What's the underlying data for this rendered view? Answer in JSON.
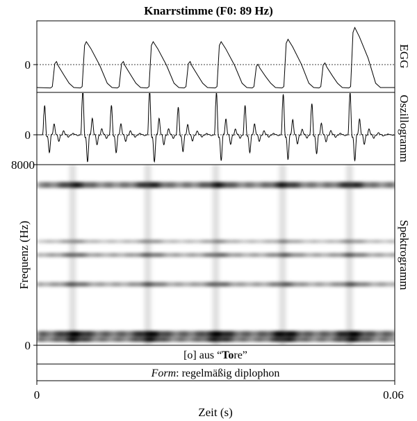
{
  "chart_data": [
    {
      "type": "line",
      "panel": "EGG",
      "title": "Knarrstimme (F0: 89 Hz)",
      "side_label": "EGG",
      "y_tick_labels": [
        "0"
      ],
      "baseline_dotted": true,
      "xlim": [
        0,
        0.06
      ],
      "cycles": [
        {
          "t_rise": 0.0026,
          "peak": 0.58,
          "kind": "minor"
        },
        {
          "t_rise": 0.0076,
          "peak": 1.0,
          "kind": "major"
        },
        {
          "t_rise": 0.0138,
          "peak": 0.58,
          "kind": "minor"
        },
        {
          "t_rise": 0.0188,
          "peak": 1.0,
          "kind": "major"
        },
        {
          "t_rise": 0.025,
          "peak": 0.58,
          "kind": "minor"
        },
        {
          "t_rise": 0.0302,
          "peak": 1.0,
          "kind": "major"
        },
        {
          "t_rise": 0.0364,
          "peak": 0.52,
          "kind": "minor"
        },
        {
          "t_rise": 0.0414,
          "peak": 1.05,
          "kind": "major"
        },
        {
          "t_rise": 0.0476,
          "peak": 0.55,
          "kind": "minor"
        },
        {
          "t_rise": 0.0526,
          "peak": 1.3,
          "kind": "major"
        }
      ]
    },
    {
      "type": "line",
      "panel": "Oszillogramm",
      "side_label": "Oszillogramm",
      "y_tick_labels": [
        "0"
      ],
      "baseline_dotted": true,
      "xlim": [
        0,
        0.06
      ],
      "pulse_times": [
        0.0012,
        0.0076,
        0.0124,
        0.0188,
        0.0236,
        0.03,
        0.0348,
        0.0412,
        0.046,
        0.0524
      ],
      "pulse_peaks": [
        0.8,
        1.2,
        0.75,
        1.2,
        0.7,
        1.15,
        0.75,
        1.1,
        0.8,
        1.15
      ]
    },
    {
      "type": "heatmap",
      "panel": "Spektrogramm",
      "side_label": "Spektrogramm",
      "ylabel": "Frequenz (Hz)",
      "y_tick_labels": [
        "0",
        "8000"
      ],
      "ylim": [
        0,
        8000
      ],
      "xlim": [
        0,
        0.06
      ],
      "formant_bands_hz": [
        {
          "f": 500,
          "strength": 0.95,
          "width": 260
        },
        {
          "f": 250,
          "strength": 0.85,
          "width": 200
        },
        {
          "f": 2700,
          "strength": 0.55,
          "width": 200
        },
        {
          "f": 4000,
          "strength": 0.55,
          "width": 180
        },
        {
          "f": 4600,
          "strength": 0.4,
          "width": 150
        },
        {
          "f": 7100,
          "strength": 0.8,
          "width": 260
        }
      ],
      "vertical_striations_s": [
        0.006,
        0.0186,
        0.03,
        0.0412,
        0.0524
      ]
    }
  ],
  "captions": {
    "line1": "[o] aus “Tore”",
    "line1_bracket": "[o] aus “",
    "line1_bold": "To",
    "line1_tail": "re”",
    "line2_italic": "Form",
    "line2_rest": ": regelmäßig diplophon"
  },
  "x_axis": {
    "label": "Zeit (s)",
    "tick_labels": [
      "0",
      "0.06"
    ]
  }
}
